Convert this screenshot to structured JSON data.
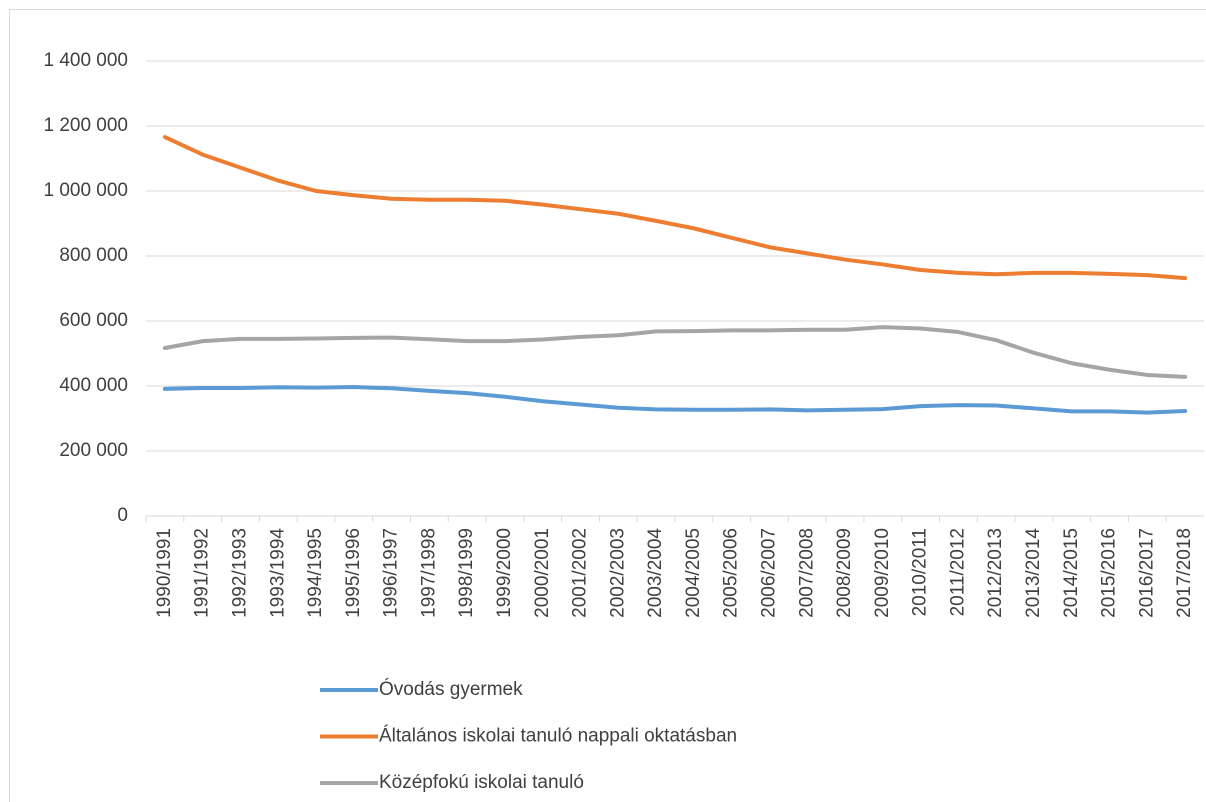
{
  "chart_data": {
    "type": "line",
    "categories": [
      "1990/1991",
      "1991/1992",
      "1992/1993",
      "1993/1994",
      "1994/1995",
      "1995/1996",
      "1996/1997",
      "1997/1998",
      "1998/1999",
      "1999/2000",
      "2000/2001",
      "2001/2002",
      "2002/2003",
      "2003/2004",
      "2004/2005",
      "2005/2006",
      "2006/2007",
      "2007/2008",
      "2008/2009",
      "2009/2010",
      "2010/2011",
      "2011/2012",
      "2012/2013",
      "2013/2014",
      "2014/2015",
      "2015/2016",
      "2016/2017",
      "2017/2018"
    ],
    "series": [
      {
        "name": "Óvodás gyermek",
        "color": "#5b9bd5",
        "values": [
          391000,
          394000,
          394000,
          396000,
          395000,
          397000,
          393000,
          385000,
          378000,
          367000,
          353000,
          343000,
          333000,
          328000,
          327000,
          327000,
          328000,
          325000,
          327000,
          329000,
          338000,
          341000,
          340000,
          331000,
          322000,
          322000,
          318000,
          323000
        ]
      },
      {
        "name": "Általános iskolai tanuló nappali oktatásban",
        "color": "#ed7d31",
        "values": [
          1166000,
          1112000,
          1072000,
          1032000,
          1000000,
          987000,
          976000,
          973000,
          973000,
          970000,
          958000,
          944000,
          930000,
          908000,
          885000,
          856000,
          827000,
          808000,
          789000,
          774000,
          757000,
          748000,
          744000,
          748000,
          748000,
          745000,
          741000,
          732000
        ]
      },
      {
        "name": "Középfokú iskolai tanuló",
        "color": "#a5a5a5",
        "values": [
          517000,
          538000,
          545000,
          545000,
          546000,
          548000,
          549000,
          544000,
          538000,
          538000,
          543000,
          551000,
          556000,
          568000,
          569000,
          571000,
          571000,
          573000,
          573000,
          581000,
          577000,
          566000,
          541000,
          502000,
          470000,
          450000,
          434000,
          428000
        ]
      }
    ],
    "ylim": [
      0,
      1400000
    ],
    "yticks": [
      0,
      {
        "value": 200000,
        "label": "200 000"
      },
      {
        "value": 400000,
        "label": "400 000"
      },
      {
        "value": 600000,
        "label": "600 000"
      },
      {
        "value": 800000,
        "label": "800 000"
      },
      {
        "value": 1000000,
        "label": "1 000 000"
      },
      {
        "value": 1200000,
        "label": "1 200 000"
      },
      {
        "value": 1400000,
        "label": "1 400 000"
      }
    ],
    "grid": true,
    "legend": "bottom"
  }
}
